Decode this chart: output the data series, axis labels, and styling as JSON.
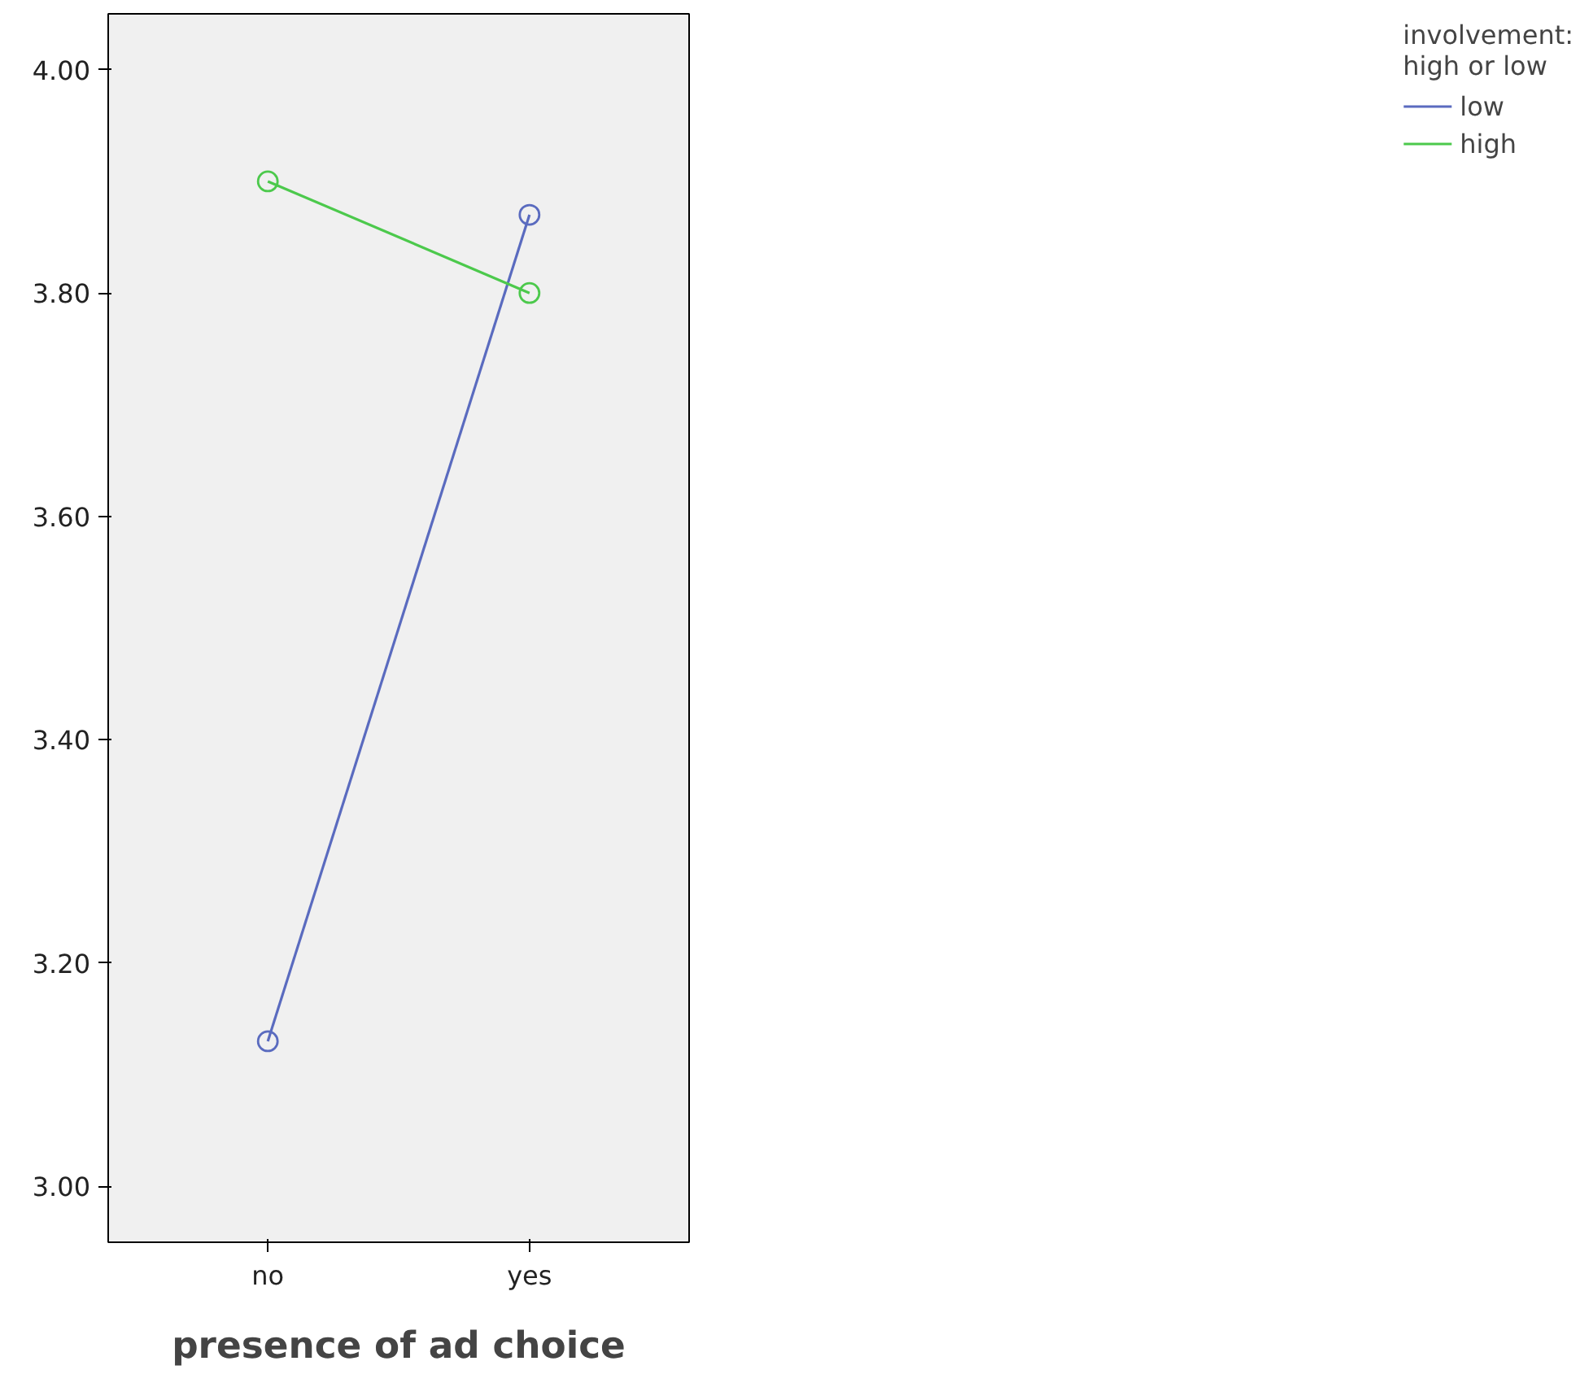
{
  "chart_data": {
    "type": "line",
    "xlabel": "presence of ad choice",
    "legend_title": "involvement:\nhigh or low",
    "categories": [
      "no",
      "yes"
    ],
    "series": [
      {
        "name": "low",
        "color": "#5a6bbf",
        "values": [
          3.13,
          3.87
        ]
      },
      {
        "name": "high",
        "color": "#4cc94c",
        "values": [
          3.9,
          3.8
        ]
      }
    ],
    "ylim": [
      2.95,
      4.05
    ],
    "yticks": [
      {
        "value": 3.0,
        "label": "3.00"
      },
      {
        "value": 3.2,
        "label": "3.20"
      },
      {
        "value": 3.4,
        "label": "3.40"
      },
      {
        "value": 3.6,
        "label": "3.60"
      },
      {
        "value": 3.8,
        "label": "3.80"
      },
      {
        "value": 4.0,
        "label": "4.00"
      }
    ],
    "grid": false,
    "legend": "right",
    "marker": "circle",
    "line_style": "solid"
  }
}
